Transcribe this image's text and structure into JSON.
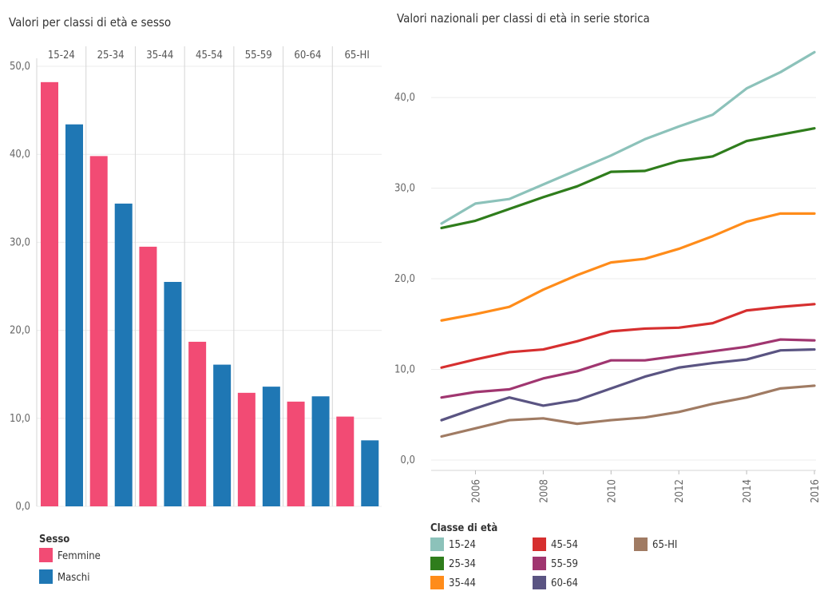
{
  "chart_data": [
    {
      "type": "bar",
      "title": "Valori per classi di età e sesso",
      "categories": [
        "15-24",
        "25-34",
        "35-44",
        "45-54",
        "55-59",
        "60-64",
        "65-HI"
      ],
      "series": [
        {
          "name": "Femmine",
          "color": "#f24b74",
          "values": [
            48.2,
            39.8,
            29.5,
            18.7,
            12.9,
            11.9,
            10.2
          ]
        },
        {
          "name": "Maschi",
          "color": "#1f77b4",
          "values": [
            43.4,
            34.4,
            25.5,
            16.1,
            13.6,
            12.5,
            7.5
          ]
        }
      ],
      "ylim": [
        0,
        50
      ],
      "yticks": [
        "0,0",
        "10,0",
        "20,0",
        "30,0",
        "40,0",
        "50,0"
      ],
      "legend": {
        "title": "Sesso",
        "position": "bottom-left"
      },
      "grid": true
    },
    {
      "type": "line",
      "title": "Valori nazionali  per classi di età in serie storica",
      "x": [
        2005,
        2006,
        2007,
        2008,
        2009,
        2010,
        2011,
        2012,
        2013,
        2014,
        2015,
        2016
      ],
      "xticks": [
        "2006",
        "2008",
        "2010",
        "2012",
        "2014",
        "2016"
      ],
      "series": [
        {
          "name": "15-24",
          "color": "#8cc2ba",
          "values": [
            26.1,
            28.3,
            28.8,
            30.4,
            32.0,
            33.6,
            35.4,
            36.8,
            38.1,
            41.0,
            42.8,
            45.0
          ]
        },
        {
          "name": "25-34",
          "color": "#2f7d1c",
          "values": [
            25.6,
            26.4,
            27.7,
            29.0,
            30.2,
            31.8,
            31.9,
            33.0,
            33.5,
            35.2,
            35.9,
            36.6
          ]
        },
        {
          "name": "35-44",
          "color": "#ff8c1a",
          "values": [
            15.4,
            16.1,
            16.9,
            18.8,
            20.4,
            21.8,
            22.2,
            23.3,
            24.7,
            26.3,
            27.2,
            27.2
          ]
        },
        {
          "name": "45-54",
          "color": "#d62f2f",
          "values": [
            10.2,
            11.1,
            11.9,
            12.2,
            13.1,
            14.2,
            14.5,
            14.6,
            15.1,
            16.5,
            16.9,
            17.2
          ]
        },
        {
          "name": "55-59",
          "color": "#a03670",
          "values": [
            6.9,
            7.5,
            7.8,
            9.0,
            9.8,
            11.0,
            11.0,
            11.5,
            12.0,
            12.5,
            13.3,
            13.2
          ]
        },
        {
          "name": "60-64",
          "color": "#5a5482",
          "values": [
            4.4,
            5.7,
            6.9,
            6.0,
            6.6,
            7.9,
            9.2,
            10.2,
            10.7,
            11.1,
            12.1,
            12.2
          ]
        },
        {
          "name": "65-HI",
          "color": "#a07b63",
          "values": [
            2.6,
            3.5,
            4.4,
            4.6,
            4.0,
            4.4,
            4.7,
            5.3,
            6.2,
            6.9,
            7.9,
            8.2
          ]
        }
      ],
      "ylim": [
        0,
        46
      ],
      "yticks": [
        "0,0",
        "10,0",
        "20,0",
        "30,0",
        "40,0"
      ],
      "legend": {
        "title": "Classe di età",
        "position": "bottom"
      },
      "grid": true
    }
  ]
}
